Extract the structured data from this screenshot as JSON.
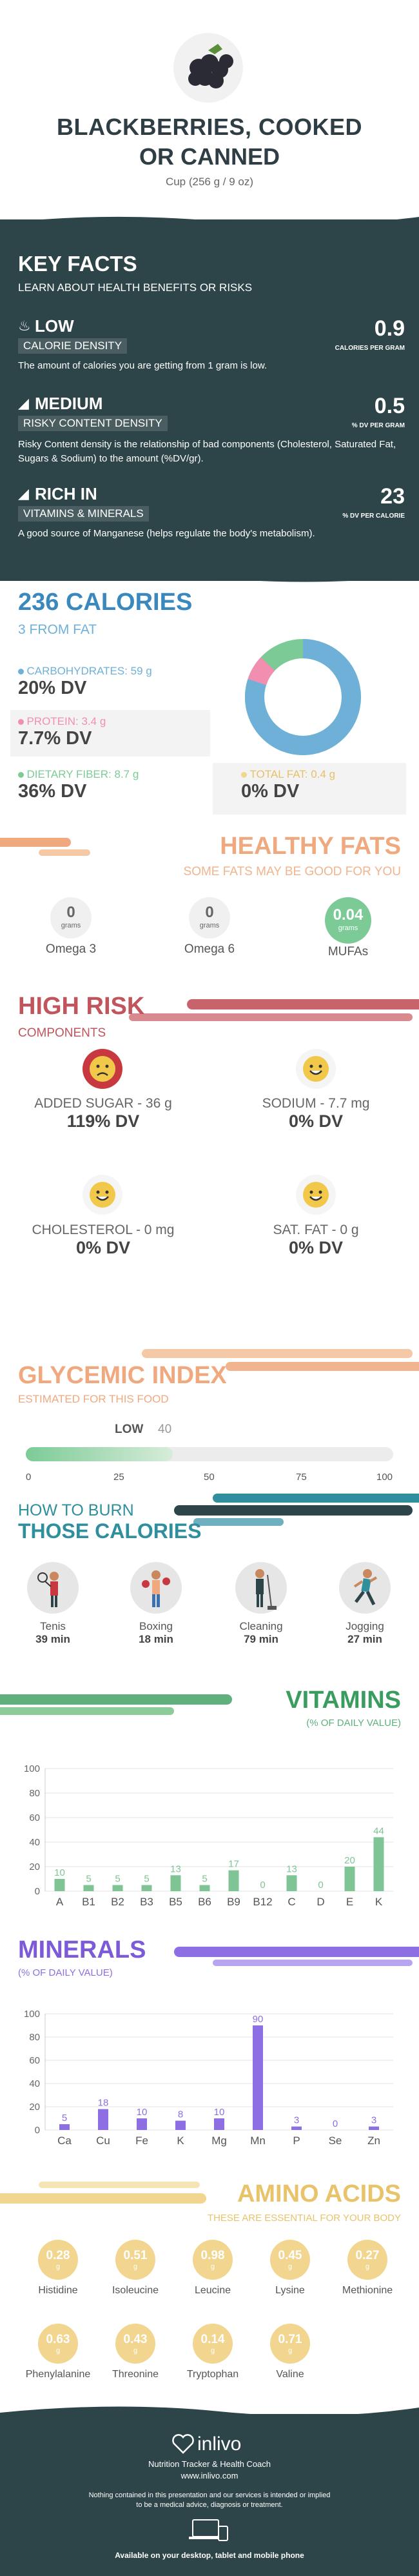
{
  "header": {
    "title_line1": "BLACKBERRIES, COOKED",
    "title_line2": "OR CANNED",
    "serving": "Cup (256 g / 9 oz)"
  },
  "keyfacts": {
    "title": "KEY FACTS",
    "subtitle": "LEARN ABOUT HEALTH BENEFITS OR RISKS",
    "items": [
      {
        "level": "LOW",
        "label": "CALORIE DENSITY",
        "desc": "The amount of calories you are getting from 1 gram is low.",
        "value": "0.9",
        "unit": "CALORIES PER GRAM"
      },
      {
        "level": "MEDIUM",
        "label": "RISKY CONTENT DENSITY",
        "desc": "Risky Content density is the relationship of bad components (Cholesterol, Saturated Fat, Sugars & Sodium) to the amount (%DV/gr).",
        "value": "0.5",
        "unit": "% DV PER GRAM"
      },
      {
        "level": "RICH IN",
        "label": "VITAMINS & MINERALS",
        "desc": "A good source of Manganese (helps regulate the body's metabolism).",
        "value": "23",
        "unit": "% DV PER CALORIE"
      }
    ]
  },
  "calories": {
    "title": "236 CALORIES",
    "from_fat": "3 FROM FAT",
    "carbs": {
      "label": "CARBOHYDRATES: 59 g",
      "dv": "20% DV"
    },
    "protein": {
      "label": "PROTEIN: 3.4 g",
      "dv": "7.7% DV"
    },
    "fiber": {
      "label": "DIETARY FIBER: 8.7 g",
      "dv": "36% DV"
    },
    "fat": {
      "label": "TOTAL FAT: 0.4 g",
      "dv": "0% DV"
    },
    "colors": {
      "carbs": "#6fb0d8",
      "protein": "#f28fb0",
      "fiber": "#7ccb97",
      "fat": "#f2d58e"
    }
  },
  "healthy_fats": {
    "title": "HEALTHY FATS",
    "subtitle": "SOME FATS MAY BE GOOD FOR YOU",
    "items": [
      {
        "value": "0",
        "unit": "grams",
        "name": "Omega 3"
      },
      {
        "value": "0",
        "unit": "grams",
        "name": "Omega 6"
      },
      {
        "value": "0.04",
        "unit": "grams",
        "name": "MUFAs"
      }
    ]
  },
  "high_risk": {
    "title": "HIGH RISK",
    "subtitle": "COMPONENTS",
    "items": [
      {
        "label": "ADDED SUGAR - 36 g",
        "dv": "119% DV"
      },
      {
        "label": "SODIUM - 7.7 mg",
        "dv": "0% DV"
      },
      {
        "label": "CHOLESTEROL - 0 mg",
        "dv": "0% DV"
      },
      {
        "label": "SAT. FAT - 0 g",
        "dv": "0% DV"
      }
    ]
  },
  "glycemic": {
    "title": "GLYCEMIC INDEX",
    "subtitle": "ESTIMATED FOR THIS FOOD",
    "level": "LOW",
    "value": "40",
    "ticks": [
      "0",
      "25",
      "50",
      "75",
      "100"
    ],
    "fraction": 0.4
  },
  "burn": {
    "title1": "HOW TO BURN",
    "title2": "THOSE CALORIES",
    "items": [
      {
        "name": "Tenis",
        "time": "39 min"
      },
      {
        "name": "Boxing",
        "time": "18 min"
      },
      {
        "name": "Cleaning",
        "time": "79 min"
      },
      {
        "name": "Jogging",
        "time": "27 min"
      }
    ]
  },
  "vitamins_text": {
    "title": "VITAMINS",
    "subtitle": "(% OF DAILY VALUE)"
  },
  "minerals_text": {
    "title": "MINERALS",
    "subtitle": "(% OF DAILY VALUE)"
  },
  "chart_data": [
    {
      "type": "bar",
      "title": "",
      "categories": [
        "A",
        "B1",
        "B2",
        "B3",
        "B5",
        "B6",
        "B9",
        "B12",
        "C",
        "D",
        "E",
        "K"
      ],
      "values": [
        10,
        5,
        5,
        5,
        13,
        5,
        17,
        0,
        13,
        0,
        20,
        44
      ],
      "ylim": [
        0,
        100
      ],
      "yticks": [
        "0",
        "20",
        "40",
        "60",
        "80",
        "100"
      ]
    },
    {
      "type": "bar",
      "title": "",
      "categories": [
        "Ca",
        "Cu",
        "Fe",
        "K",
        "Mg",
        "Mn",
        "P",
        "Se",
        "Zn"
      ],
      "values": [
        5,
        18,
        10,
        8,
        10,
        90,
        3,
        0,
        3
      ],
      "ylim": [
        0,
        100
      ],
      "yticks": [
        "0",
        "20",
        "40",
        "60",
        "80",
        "100"
      ]
    }
  ],
  "amino": {
    "title": "AMINO ACIDS",
    "subtitle": "THESE ARE ESSENTIAL FOR YOUR BODY",
    "unit": "g",
    "items": [
      {
        "value": "0.28",
        "name": "Histidine"
      },
      {
        "value": "0.51",
        "name": "Isoleucine"
      },
      {
        "value": "0.98",
        "name": "Leucine"
      },
      {
        "value": "0.45",
        "name": "Lysine"
      },
      {
        "value": "0.27",
        "name": "Methionine"
      },
      {
        "value": "0.63",
        "name": "Phenylalanine"
      },
      {
        "value": "0.43",
        "name": "Threonine"
      },
      {
        "value": "0.14",
        "name": "Tryptophan"
      },
      {
        "value": "0.71",
        "name": "Valine"
      }
    ]
  },
  "footer": {
    "brand": "inlivo",
    "tagline": "Nutrition Tracker & Health Coach",
    "url": "www.inlivo.com",
    "disclaimer1": "Nothing contained in this presentation and our services is intended or implied",
    "disclaimer2": "to be a medical advice, diagnosis or treatment.",
    "available": "Available on your desktop, tablet and mobile phone"
  }
}
